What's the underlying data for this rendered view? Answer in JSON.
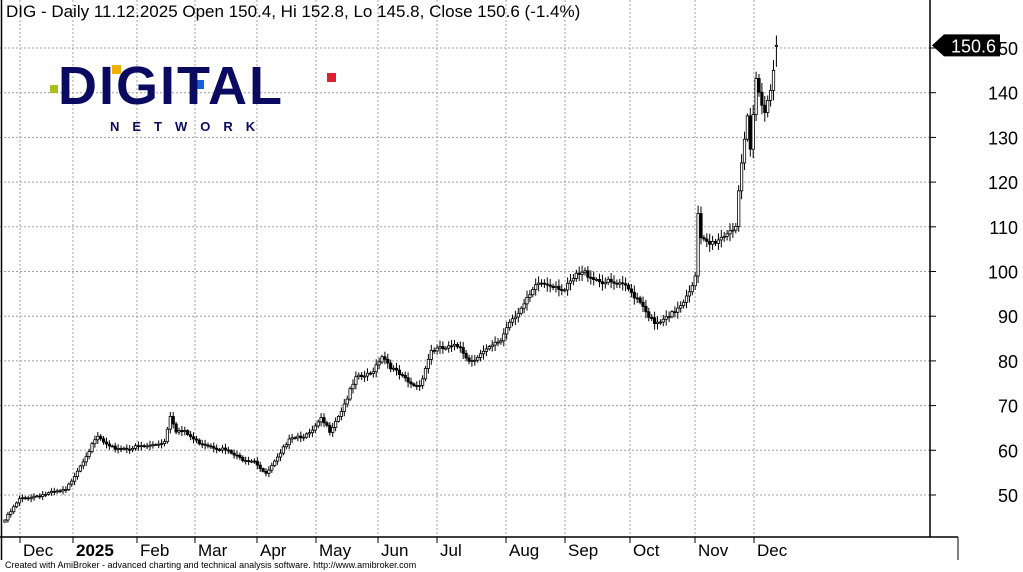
{
  "chart_data": {
    "type": "candlestick",
    "title": "DIG - Daily 11.12.2025 Open 150.4, Hi 152.8, Lo 145.8, Close 150.6 (-1.4%)",
    "symbol": "DIG",
    "last_bar": {
      "date": "11.12.2025",
      "open": 150.4,
      "high": 152.8,
      "low": 145.8,
      "close": 150.6,
      "change_pct": -1.4
    },
    "last_price_label": "150.6",
    "ylim": [
      40,
      155
    ],
    "y_ticks": [
      50,
      60,
      70,
      80,
      90,
      100,
      110,
      120,
      130,
      140,
      150
    ],
    "x_labels": [
      "Dec",
      "2025",
      "Feb",
      "Mar",
      "Apr",
      "May",
      "Jun",
      "Jul",
      "Aug",
      "Sep",
      "Oct",
      "Nov",
      "Dec"
    ],
    "grid": true,
    "close_anchors": [
      [
        0,
        44.4
      ],
      [
        5,
        49
      ],
      [
        12,
        50
      ],
      [
        21,
        51
      ],
      [
        24,
        54.5
      ],
      [
        28,
        59
      ],
      [
        32,
        63
      ],
      [
        36,
        60.5
      ],
      [
        43,
        60.5
      ],
      [
        50,
        61
      ],
      [
        55,
        62
      ],
      [
        57,
        68
      ],
      [
        59,
        64.5
      ],
      [
        62,
        64
      ],
      [
        66,
        62
      ],
      [
        69,
        61.5
      ],
      [
        76,
        60
      ],
      [
        81,
        58.2
      ],
      [
        86,
        57.8
      ],
      [
        90,
        54.5
      ],
      [
        91,
        55.5
      ],
      [
        95,
        59
      ],
      [
        98,
        63
      ],
      [
        105,
        63.5
      ],
      [
        109,
        66.8
      ],
      [
        112,
        64.5
      ],
      [
        116,
        69
      ],
      [
        121,
        76
      ],
      [
        126,
        77
      ],
      [
        130,
        81.3
      ],
      [
        134,
        78
      ],
      [
        140,
        74.6
      ],
      [
        143,
        74.6
      ],
      [
        147,
        82.4
      ],
      [
        152,
        82.8
      ],
      [
        157,
        83.3
      ],
      [
        160,
        80
      ],
      [
        166,
        82.2
      ],
      [
        171,
        84.7
      ],
      [
        174,
        89
      ],
      [
        179,
        92.5
      ],
      [
        184,
        97.4
      ],
      [
        190,
        97
      ],
      [
        193,
        95.8
      ],
      [
        197,
        99
      ],
      [
        200,
        99.7
      ],
      [
        205,
        98
      ],
      [
        214,
        96.5
      ],
      [
        219,
        93.6
      ],
      [
        224,
        88
      ],
      [
        229,
        89.6
      ],
      [
        234,
        93.6
      ],
      [
        238,
        98.5
      ],
      [
        239,
        112.6
      ],
      [
        240,
        107
      ],
      [
        243,
        106
      ],
      [
        247,
        107.7
      ],
      [
        252,
        110.4
      ],
      [
        253,
        118
      ],
      [
        256,
        133.9
      ],
      [
        257,
        127
      ],
      [
        259,
        142.8
      ],
      [
        262,
        136
      ],
      [
        264,
        140.6
      ],
      [
        266,
        150.6
      ]
    ],
    "colors": {
      "up_body": "#ffffff",
      "down_body": "#000000",
      "grid": "#a0a0a0"
    }
  },
  "logo": {
    "word": "DIGITAL",
    "sub": "NETWORK"
  },
  "footer": "Created with AmiBroker - advanced charting and technical analysis software. http://www.amibroker.com"
}
